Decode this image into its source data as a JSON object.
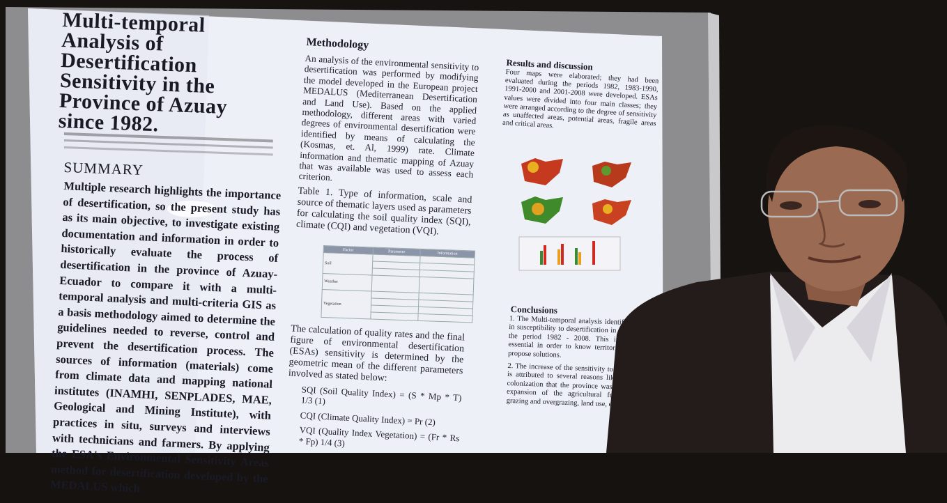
{
  "poster": {
    "title": "Multi-temporal Analysis of Desertification Sensitivity in the Province of Azuay since 1982.",
    "summary": {
      "heading": "SUMMARY",
      "text": "Multiple research highlights the importance of desertification, so the present study has as its main objective, to investigate existing documentation and information in order to historically evaluate the process of desertification in the province of Azuay- Ecuador to compare it with a multi-temporal analysis and multi-criteria GIS as a basis methodology aimed to determine the guidelines needed to reverse, control and prevent the desertification process. The sources of information (materials) come from climate data and mapping national institutes (INAMHI, SENPLADES, MAE, Geological and Mining Institute), with practices in situ, surveys and interviews with technicians and farmers. By applying the ESA's Environmental Sensitivity Areas method for desertification developed by the MEDALUS which"
    },
    "methodology": {
      "heading": "Methodology",
      "text": "An analysis of the environmental sensitivity to desertification was performed by modifying the model developed in the European project MEDALUS (Mediterranean Desertification and Land Use). Based on the applied methodology, different areas with varied degrees of environmental desertification were identified by means of calculating the (Kosmas, et. Al, 1999) rate. Climate information and thematic mapping of Azuay that was available was used to assess each criterion.",
      "table_caption": "Table 1. Type of information, scale and source of thematic layers used as parameters for calculating the soil quality index (SQI), climate (CQI) and vegetation (VQI).",
      "table": {
        "headers": [
          "Factor",
          "Parameter",
          "Information"
        ],
        "factors": [
          "Soil",
          "Weather",
          "Vegetation"
        ]
      },
      "calculation": "The calculation of quality rates and the final figure of environmental desertification (ESAs) sensitivity is determined by the geometric mean of the different parameters involved as stated below:",
      "formulas": [
        "SQI (Soil Quality Index) = (S * Mp * T) 1/3 (1)",
        "CQI (Climate Quality Index) = Pr (2)",
        "VQI (Quality Index Vegetation) = (Fr * Rs * Fp) 1/4 (3)"
      ]
    },
    "results": {
      "heading": "Results and discussion",
      "text": "Four maps were elaborated; they had been evaluated during the periods 1982, 1983-1990, 1991-2000 and 2001-2008 were developed. ESAs values were divided into four main classes; they were arranged according to the degree of sensitivity as unaffected areas, potential areas, fragile areas and critical areas."
    },
    "conclusions": {
      "heading": "Conclusions",
      "items": [
        "1. The Multi-temporal analysis identified changes in susceptibility to desertification in Azuay during the period 1982 - 2008. This information is essential in order to know territorial trends and propose solutions.",
        "2. The increase of the sensitivity to desertification is attributed to several reasons like spontaneous colonization that the province was subjected, the expansion of the agricultural frontier due to grazing and overgrazing, land use, excessive"
      ]
    }
  }
}
